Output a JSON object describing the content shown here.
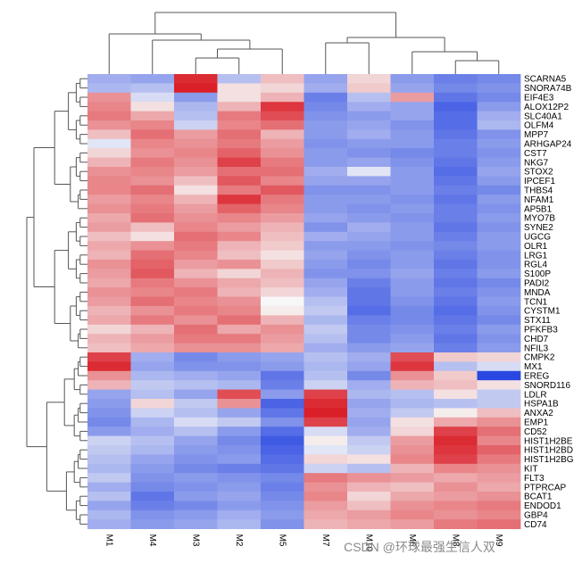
{
  "watermark": "CSDN @环球最强生信人双",
  "chart_data": {
    "type": "heatmap",
    "title": "",
    "xlabel": "",
    "ylabel": "",
    "color_scale": {
      "low": "#1f3fe0",
      "mid": "#f7f7f7",
      "high": "#d8141d",
      "range": [
        -2,
        2
      ]
    },
    "columns": [
      "M1",
      "M4",
      "M3",
      "M2",
      "M5",
      "M7",
      "M10",
      "M6",
      "M8",
      "M9"
    ],
    "rows": [
      "SCARNA5",
      "SNORA74B",
      "EIF4E3",
      "ALOX12P2",
      "SLC40A1",
      "OLFM4",
      "MPP7",
      "ARHGAP24",
      "CST7",
      "NKG7",
      "STOX2",
      "IPCEF1",
      "THBS4",
      "NFAM1",
      "AP5B1",
      "MYO7B",
      "SYNE2",
      "UGCG",
      "OLR1",
      "LRG1",
      "RGL4",
      "S100P",
      "PADI2",
      "MNDA",
      "TCN1",
      "CYSTM1",
      "STX11",
      "PFKFB3",
      "CHD7",
      "NFIL3",
      "CMPK2",
      "MX1",
      "EREG",
      "SNORD116",
      "LDLR",
      "HSPA1B",
      "ANXA2",
      "EMP1",
      "CD52",
      "HIST1H2BE",
      "HIST1H2BD",
      "HIST1H2BG",
      "KIT",
      "FLT3",
      "PTPRCAP",
      "BCAT1",
      "ENDOD1",
      "GBP4",
      "CD74"
    ],
    "values": [
      [
        -0.8,
        -0.9,
        1.8,
        -0.6,
        0.5,
        -0.9,
        0.3,
        -1.0,
        -1.3,
        -1.2
      ],
      [
        -0.7,
        -0.6,
        1.9,
        0.2,
        0.3,
        -0.8,
        0.4,
        -0.9,
        -1.2,
        -1.1
      ],
      [
        0.9,
        -0.3,
        -1.0,
        0.2,
        0.6,
        -1.3,
        -0.6,
        0.8,
        -1.4,
        -1.2
      ],
      [
        1.0,
        0.2,
        -0.7,
        0.6,
        1.7,
        -1.2,
        -0.8,
        -0.9,
        -1.6,
        -1.0
      ],
      [
        1.1,
        0.7,
        -0.6,
        1.1,
        1.5,
        -1.1,
        -1.0,
        -0.9,
        -1.5,
        -0.8
      ],
      [
        0.9,
        1.0,
        -0.4,
        1.0,
        1.2,
        -1.0,
        -0.9,
        -1.1,
        -1.5,
        -0.7
      ],
      [
        0.5,
        1.2,
        0.8,
        1.2,
        0.6,
        -1.0,
        -0.8,
        -1.0,
        -1.4,
        -1.1
      ],
      [
        -0.2,
        1.0,
        0.9,
        1.1,
        0.8,
        -1.1,
        -1.0,
        -1.0,
        -1.3,
        -1.0
      ],
      [
        0.3,
        0.9,
        1.0,
        1.3,
        0.9,
        -1.0,
        -1.1,
        -1.2,
        -1.3,
        -1.1
      ],
      [
        0.6,
        1.1,
        0.9,
        1.6,
        1.1,
        -1.0,
        -0.9,
        -1.1,
        -1.4,
        -1.0
      ],
      [
        0.9,
        1.0,
        0.8,
        1.2,
        1.2,
        -0.8,
        -0.2,
        -1.0,
        -1.5,
        -0.9
      ],
      [
        1.0,
        0.9,
        0.5,
        1.4,
        1.0,
        -0.9,
        -0.9,
        -1.0,
        -1.4,
        -1.0
      ],
      [
        1.0,
        1.2,
        0.2,
        1.1,
        1.4,
        -1.1,
        -1.1,
        -1.0,
        -1.3,
        -1.2
      ],
      [
        0.8,
        1.0,
        0.6,
        1.7,
        1.1,
        -1.0,
        -1.0,
        -1.1,
        -1.4,
        -1.0
      ],
      [
        0.9,
        1.1,
        0.8,
        1.3,
        1.0,
        -1.0,
        -1.1,
        -1.0,
        -1.3,
        -1.1
      ],
      [
        0.7,
        1.2,
        0.9,
        1.0,
        0.8,
        -0.9,
        -1.0,
        -1.1,
        -1.3,
        -1.0
      ],
      [
        0.8,
        0.5,
        1.0,
        0.8,
        0.6,
        -1.1,
        -0.8,
        -1.0,
        -1.4,
        -1.1
      ],
      [
        0.5,
        0.2,
        1.2,
        1.0,
        0.5,
        -0.8,
        -0.9,
        -1.0,
        -1.3,
        -1.0
      ],
      [
        0.7,
        0.9,
        1.1,
        0.6,
        0.4,
        -1.0,
        -1.0,
        -1.1,
        -1.2,
        -1.0
      ],
      [
        0.6,
        1.2,
        1.0,
        0.5,
        0.2,
        -0.9,
        -1.1,
        -1.0,
        -1.3,
        -1.1
      ],
      [
        0.9,
        1.3,
        0.8,
        0.9,
        0.4,
        -1.0,
        -1.2,
        -1.0,
        -1.4,
        -1.1
      ],
      [
        0.8,
        1.4,
        0.6,
        0.3,
        0.6,
        -1.1,
        -1.1,
        -0.9,
        -1.3,
        -1.0
      ],
      [
        0.7,
        1.1,
        0.9,
        0.7,
        0.5,
        -0.9,
        -1.3,
        -1.0,
        -1.4,
        -1.2
      ],
      [
        0.9,
        1.0,
        1.1,
        0.6,
        0.3,
        -0.8,
        -1.4,
        -1.0,
        -1.3,
        -1.1
      ],
      [
        0.8,
        1.2,
        1.0,
        0.9,
        0.0,
        -0.6,
        -1.4,
        -1.1,
        -1.4,
        -1.0
      ],
      [
        0.6,
        0.9,
        1.1,
        1.0,
        0.1,
        -0.5,
        -1.5,
        -1.2,
        -1.5,
        -1.1
      ],
      [
        0.7,
        1.1,
        0.9,
        1.2,
        0.6,
        -0.7,
        -1.3,
        -1.2,
        -1.4,
        -1.2
      ],
      [
        0.3,
        0.6,
        1.2,
        0.7,
        0.9,
        -0.5,
        -1.2,
        -1.1,
        -1.3,
        -1.0
      ],
      [
        0.6,
        0.8,
        1.1,
        1.1,
        0.8,
        -0.6,
        -1.2,
        -1.0,
        -1.4,
        -1.1
      ],
      [
        0.5,
        0.7,
        0.9,
        0.9,
        0.7,
        -0.8,
        -1.0,
        -0.9,
        -1.3,
        -1.0
      ],
      [
        1.6,
        -0.8,
        -1.2,
        -1.0,
        -0.9,
        -0.6,
        -0.8,
        1.5,
        0.4,
        0.3
      ],
      [
        1.8,
        -0.9,
        -1.1,
        -1.1,
        -1.0,
        -0.7,
        -0.9,
        1.7,
        -0.6,
        -0.3
      ],
      [
        0.9,
        -0.7,
        -0.8,
        -0.9,
        -1.4,
        -0.6,
        -1.2,
        0.9,
        0.4,
        -1.9
      ],
      [
        0.6,
        -0.5,
        -0.6,
        -0.7,
        -1.3,
        -0.4,
        -0.8,
        0.6,
        0.5,
        0.2
      ],
      [
        -0.9,
        -0.6,
        -0.9,
        1.5,
        -1.0,
        1.6,
        -0.7,
        -0.6,
        0.2,
        -0.5
      ],
      [
        -1.0,
        0.3,
        -0.5,
        0.9,
        -1.6,
        1.8,
        -0.9,
        -0.7,
        -0.6,
        -0.5
      ],
      [
        -1.1,
        -0.4,
        -0.6,
        -0.9,
        -1.4,
        1.9,
        -0.8,
        -0.5,
        0.1,
        0.5
      ],
      [
        -1.2,
        -0.7,
        -0.3,
        -0.5,
        -1.1,
        1.6,
        -0.9,
        0.2,
        0.7,
        0.9
      ],
      [
        -1.0,
        -0.8,
        -0.6,
        -1.0,
        -1.5,
        -0.3,
        -0.8,
        0.3,
        1.6,
        1.2
      ],
      [
        -0.4,
        -0.6,
        -0.9,
        -1.2,
        -1.7,
        0.1,
        -0.5,
        0.8,
        1.8,
        1.0
      ],
      [
        -0.5,
        -0.7,
        -1.0,
        -1.1,
        -1.6,
        -0.2,
        -0.4,
        0.9,
        1.7,
        1.3
      ],
      [
        -0.6,
        -0.9,
        -1.1,
        -1.0,
        -1.5,
        0.3,
        0.2,
        1.0,
        1.6,
        1.1
      ],
      [
        -0.7,
        -1.0,
        -1.2,
        -1.3,
        -1.4,
        -0.4,
        -0.6,
        0.6,
        1.0,
        0.9
      ],
      [
        -0.5,
        -1.1,
        -1.0,
        -1.1,
        -1.2,
        1.1,
        0.9,
        0.8,
        0.7,
        0.8
      ],
      [
        -0.8,
        -1.2,
        -1.1,
        -1.0,
        -1.3,
        0.9,
        0.6,
        0.5,
        0.9,
        0.7
      ],
      [
        -0.6,
        -1.4,
        -1.0,
        -0.9,
        -1.2,
        1.0,
        0.3,
        0.7,
        0.8,
        0.9
      ],
      [
        -0.9,
        -1.3,
        -1.2,
        -1.0,
        -1.1,
        0.8,
        0.5,
        0.9,
        1.0,
        1.1
      ],
      [
        -0.7,
        -1.1,
        -1.0,
        -0.8,
        -1.0,
        0.7,
        0.8,
        1.0,
        0.9,
        1.0
      ],
      [
        -0.8,
        -1.0,
        -0.9,
        -0.7,
        -1.1,
        0.6,
        0.7,
        0.8,
        1.1,
        1.2
      ]
    ],
    "legend": "none",
    "grid": false
  }
}
